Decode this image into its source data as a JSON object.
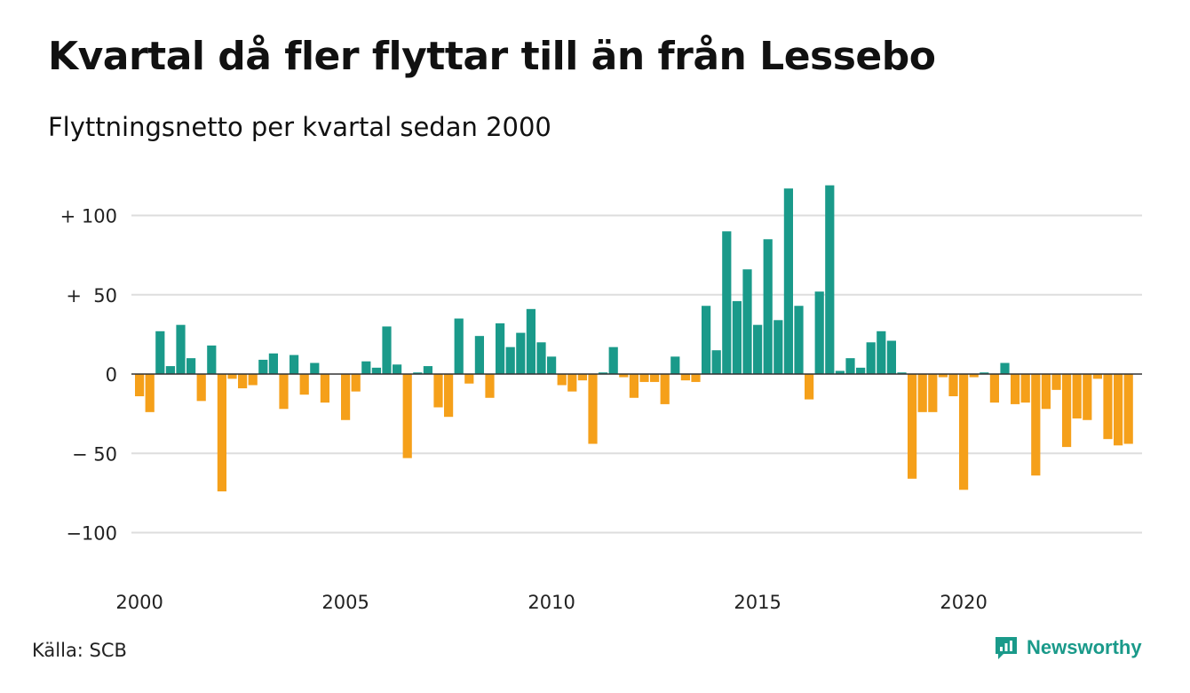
{
  "header": {
    "title": "Kvartal då fler flyttar till än från Lessebo",
    "subtitle": "Flyttningsnetto per kvartal sedan 2000"
  },
  "footer": {
    "source": "Källa: SCB",
    "brand": "Newsworthy"
  },
  "chart_data": {
    "type": "bar",
    "title": "Kvartal då fler flyttar till än från Lessebo",
    "subtitle": "Flyttningsnetto per kvartal sedan 2000",
    "xlabel": "",
    "ylabel": "",
    "ylim": [
      -125,
      125
    ],
    "x_start_year": 2000,
    "periods_per_year": 4,
    "x_ticks": [
      "2000",
      "2005",
      "2010",
      "2015",
      "2020"
    ],
    "y_ticks": [
      {
        "value": 100,
        "label": "+ 100"
      },
      {
        "value": 50,
        "label": "+  50"
      },
      {
        "value": 0,
        "label": "0"
      },
      {
        "value": -50,
        "label": "− 50"
      },
      {
        "value": -100,
        "label": "−100"
      }
    ],
    "grid": true,
    "colors": {
      "positive": "#1a9a8a",
      "negative": "#f5a01a",
      "grid": "#dddddd",
      "baseline": "#333333"
    },
    "values": [
      -14,
      -24,
      27,
      5,
      31,
      10,
      -17,
      18,
      -74,
      -3,
      -9,
      -7,
      9,
      13,
      -22,
      12,
      -13,
      7,
      -18,
      0,
      -29,
      -11,
      8,
      4,
      30,
      6,
      -53,
      1,
      5,
      -21,
      -27,
      35,
      -6,
      24,
      -15,
      32,
      17,
      26,
      41,
      20,
      11,
      -7,
      -11,
      -4,
      -44,
      1,
      17,
      -2,
      -15,
      -5,
      -5,
      -19,
      11,
      -4,
      -5,
      43,
      15,
      90,
      46,
      66,
      31,
      85,
      34,
      117,
      43,
      -16,
      52,
      119,
      2,
      10,
      4,
      20,
      27,
      21,
      1,
      -66,
      -24,
      -24,
      -2,
      -14,
      -73,
      -2,
      1,
      -18,
      7,
      -19,
      -18,
      -64,
      -22,
      -10,
      -46,
      -28,
      -29,
      -3,
      -41,
      -45,
      -44
    ]
  }
}
